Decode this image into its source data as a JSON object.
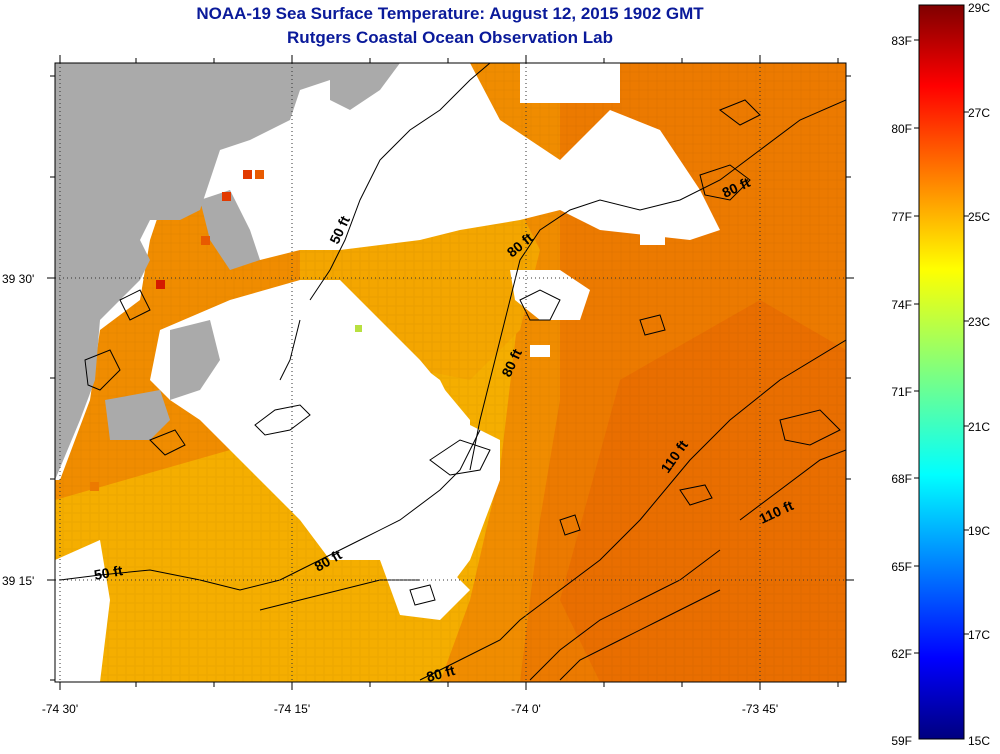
{
  "title": "NOAA-19 Sea Surface Temperature:  August 12, 2015 1902 GMT",
  "subtitle": "Rutgers Coastal Ocean Observation Lab",
  "map": {
    "lon_labels": [
      "-74 30'",
      "-74 15'",
      "-74 0'",
      "-73 45'"
    ],
    "lat_labels": [
      "39 30'",
      "39 15'"
    ],
    "contour_labels": [
      "50 ft",
      "80 ft",
      "80 ft",
      "80 ft",
      "80 ft",
      "80 ft",
      "110 ft",
      "110 ft",
      "50 ft"
    ],
    "colors": {
      "land": "#aaaaaa",
      "cloud": "#ffffff",
      "warm": "#f08a00",
      "cool": "#f5b400",
      "hot": "#e23a00"
    }
  },
  "colorbar": {
    "fahrenheit_labels": [
      "83F",
      "80F",
      "77F",
      "74F",
      "71F",
      "68F",
      "65F",
      "62F",
      "59F"
    ],
    "celsius_labels": [
      "29C",
      "27C",
      "25C",
      "23C",
      "21C",
      "19C",
      "17C",
      "15C"
    ]
  }
}
